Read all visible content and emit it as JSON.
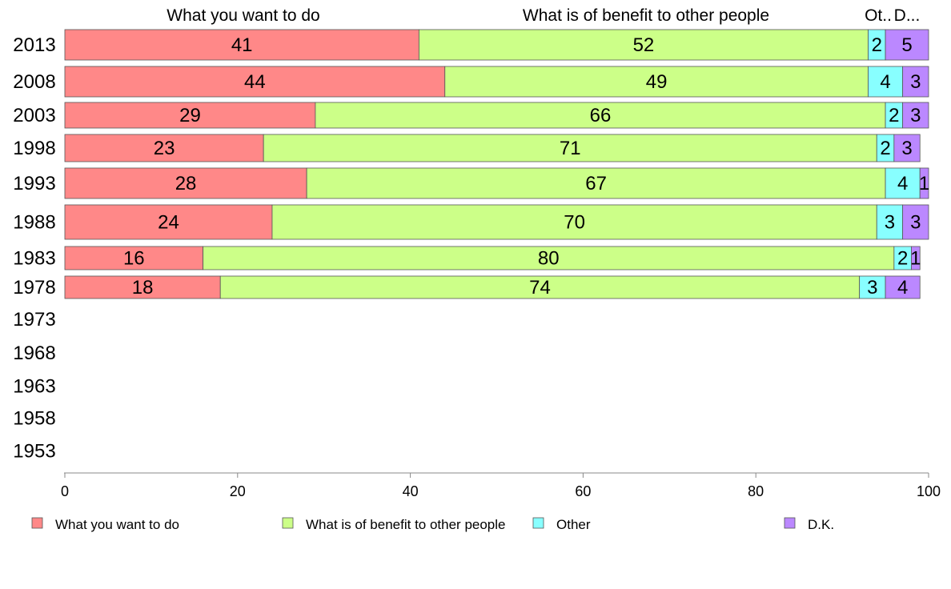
{
  "chart_data": {
    "type": "bar",
    "orientation": "horizontal",
    "stacked": true,
    "column_headers": [
      "What you want to do",
      "What is of benefit to other people",
      "Ot..",
      "D..."
    ],
    "categories": [
      "2013",
      "2008",
      "2003",
      "1998",
      "1993",
      "1988",
      "1983",
      "1978",
      "1973",
      "1968",
      "1963",
      "1958",
      "1953"
    ],
    "series": [
      {
        "name": "What you want to do",
        "color": "#ff8888",
        "values": [
          41,
          44,
          29,
          23,
          28,
          24,
          16,
          18,
          null,
          null,
          null,
          null,
          null
        ]
      },
      {
        "name": "What is of benefit to other people",
        "color": "#ccff88",
        "values": [
          52,
          49,
          66,
          71,
          67,
          70,
          80,
          74,
          null,
          null,
          null,
          null,
          null
        ]
      },
      {
        "name": "Other",
        "color": "#88ffff",
        "values": [
          2,
          4,
          2,
          2,
          4,
          3,
          2,
          3,
          null,
          null,
          null,
          null,
          null
        ]
      },
      {
        "name": "D.K.",
        "color": "#bb88ff",
        "values": [
          5,
          3,
          3,
          3,
          1,
          3,
          1,
          4,
          null,
          null,
          null,
          null,
          null
        ]
      }
    ],
    "xlim": [
      0,
      100
    ],
    "xticks": [
      "0",
      "20",
      "40",
      "60",
      "80",
      "100"
    ],
    "legend_position": "bottom"
  }
}
